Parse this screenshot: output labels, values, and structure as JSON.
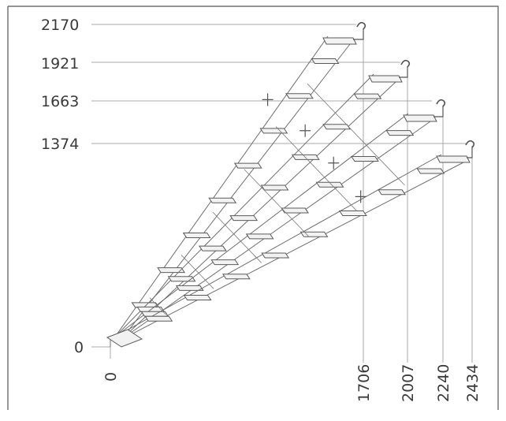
{
  "diagram": {
    "left_labels": [
      "2170",
      "1921",
      "1663",
      "1374"
    ],
    "origin_y_label": "0",
    "origin_x_label": "0",
    "bottom_labels": [
      "1706",
      "2007",
      "2240",
      "2434"
    ],
    "line_color": "#6e6e6e",
    "guide_color": "#a8a8a8",
    "border_color": "#555555"
  }
}
